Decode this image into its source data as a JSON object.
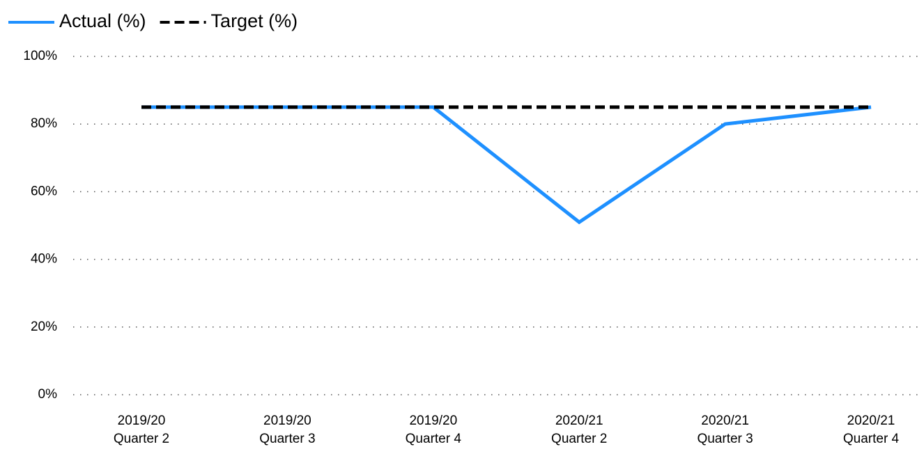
{
  "chart_data": {
    "type": "line",
    "categories": [
      "2019/20\nQuarter 2",
      "2019/20\nQuarter 3",
      "2019/20\nQuarter 4",
      "2020/21\nQuarter 2",
      "2020/21\nQuarter 3",
      "2020/21\nQuarter 4"
    ],
    "series": [
      {
        "name": "Actual (%)",
        "color": "#1e90ff",
        "dash": false,
        "values": [
          85,
          85,
          85,
          51,
          80,
          85
        ]
      },
      {
        "name": "Target (%)",
        "color": "#000000",
        "dash": true,
        "values": [
          85,
          85,
          85,
          85,
          85,
          85
        ]
      }
    ],
    "ylim": [
      0,
      100
    ],
    "yticks": [
      {
        "value": 0,
        "label": "0%"
      },
      {
        "value": 20,
        "label": "20%"
      },
      {
        "value": 40,
        "label": "40%"
      },
      {
        "value": 60,
        "label": "60%"
      },
      {
        "value": 80,
        "label": "80%"
      },
      {
        "value": 100,
        "label": "100%"
      }
    ],
    "grid": true,
    "legend": "top-left"
  }
}
